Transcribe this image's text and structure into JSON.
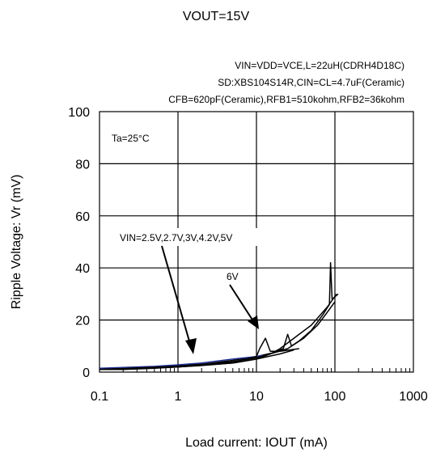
{
  "chart_data": {
    "type": "line",
    "title": "VOUT=15V",
    "conditions": [
      "VIN=VDD=VCE,L=22uH(CDRH4D18C)",
      "SD:XBS104S14R,CIN=CL=4.7uF(Ceramic)",
      "CFB=620pF(Ceramic),RFB1=510kohm,RFB2=36kohm"
    ],
    "inset_label": "Ta=25°C",
    "xlabel": "Load current: IOUT (mA)",
    "ylabel": "Ripple Voltage: Vr (mV)",
    "x_scale": "log",
    "xlim": [
      0.1,
      1000
    ],
    "ylim": [
      0,
      100
    ],
    "x_ticks": [
      "0.1",
      "1",
      "10",
      "100",
      "1000"
    ],
    "y_ticks": [
      "0",
      "20",
      "40",
      "60",
      "80",
      "100"
    ],
    "grid": true,
    "annotations": [
      {
        "text": "VIN=2.5V,2.7V,3V,4.2V,5V"
      },
      {
        "text": "6V"
      }
    ],
    "series": [
      {
        "color": "#000000",
        "points": [
          [
            0.1,
            1
          ],
          [
            0.2,
            1
          ],
          [
            0.5,
            1.5
          ],
          [
            1,
            2
          ],
          [
            2,
            2.5
          ],
          [
            5,
            3.5
          ],
          [
            10,
            5
          ],
          [
            20,
            7
          ],
          [
            30,
            8.5
          ]
        ]
      },
      {
        "color": "#000000",
        "points": [
          [
            0.1,
            1.2
          ],
          [
            0.2,
            1.3
          ],
          [
            0.5,
            2
          ],
          [
            1,
            2.5
          ],
          [
            2,
            3
          ],
          [
            5,
            4.5
          ],
          [
            10,
            6
          ],
          [
            20,
            8
          ],
          [
            35,
            9
          ]
        ]
      },
      {
        "color": "#1f2f8f",
        "points": [
          [
            0.1,
            1.5
          ],
          [
            0.5,
            2.2
          ],
          [
            1,
            2.8
          ],
          [
            2,
            3.5
          ],
          [
            5,
            5
          ],
          [
            10,
            6
          ],
          [
            12,
            6.5
          ]
        ]
      },
      {
        "color": "#000000",
        "points": [
          [
            0.1,
            1
          ],
          [
            1,
            2.2
          ],
          [
            5,
            4
          ],
          [
            10,
            5.5
          ],
          [
            15,
            7
          ],
          [
            25,
            9
          ],
          [
            40,
            13
          ],
          [
            60,
            18
          ],
          [
            80,
            23
          ],
          [
            100,
            27
          ]
        ]
      },
      {
        "color": "#000000",
        "points": [
          [
            0.1,
            1
          ],
          [
            1,
            2
          ],
          [
            5,
            3.5
          ],
          [
            10,
            5
          ],
          [
            15,
            7
          ],
          [
            20,
            9
          ],
          [
            30,
            13
          ],
          [
            50,
            18
          ],
          [
            80,
            25
          ],
          [
            105,
            30
          ]
        ]
      },
      {
        "color": "#000000",
        "points": [
          [
            0.1,
            1
          ],
          [
            1,
            2
          ],
          [
            5,
            3.8
          ],
          [
            10,
            6
          ],
          [
            11,
            9
          ],
          [
            13,
            13
          ],
          [
            15,
            8
          ],
          [
            18,
            8
          ],
          [
            22,
            9
          ],
          [
            25,
            14.5
          ],
          [
            28,
            10
          ],
          [
            35,
            12
          ],
          [
            50,
            16
          ],
          [
            70,
            22
          ],
          [
            85,
            26
          ],
          [
            88,
            42
          ],
          [
            92,
            28
          ],
          [
            110,
            30
          ]
        ]
      }
    ]
  }
}
